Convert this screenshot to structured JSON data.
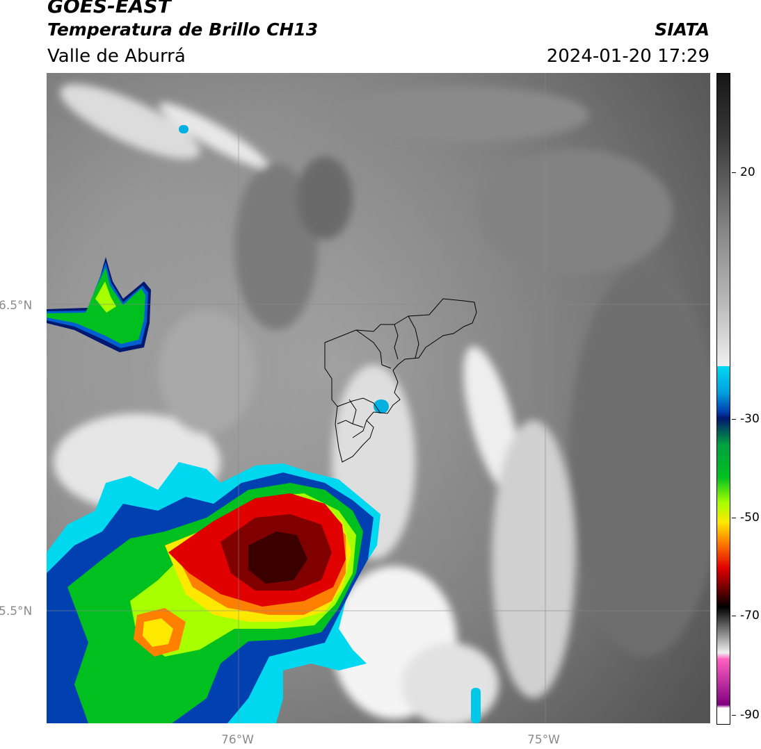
{
  "header": {
    "satellite": "GOES-EAST",
    "product": "Temperatura de Brillo CH13",
    "region": "Valle de Aburrá",
    "organization": "SIATA",
    "datetime": "2024-01-20 17:29"
  },
  "map": {
    "lat_labels": [
      "6.5°N",
      "5.5°N"
    ],
    "lon_labels": [
      "76°W",
      "75°W"
    ]
  },
  "colorbar": {
    "tick_labels": [
      "20",
      "-30",
      "-50",
      "-70",
      "-90"
    ],
    "colors": {
      "warm": "#3a3a3a",
      "gray": "#a0a0a0",
      "white": "#f2f2f2",
      "cyan": "#00d8f0",
      "blue": "#0040b0",
      "navy": "#001870",
      "green": "#00c020",
      "lime": "#a8ff00",
      "yellow": "#ffe800",
      "orange": "#ff8000",
      "red": "#e00000",
      "darkred": "#500000",
      "black": "#000000",
      "pink": "#ff60c0",
      "purple": "#800080"
    }
  }
}
